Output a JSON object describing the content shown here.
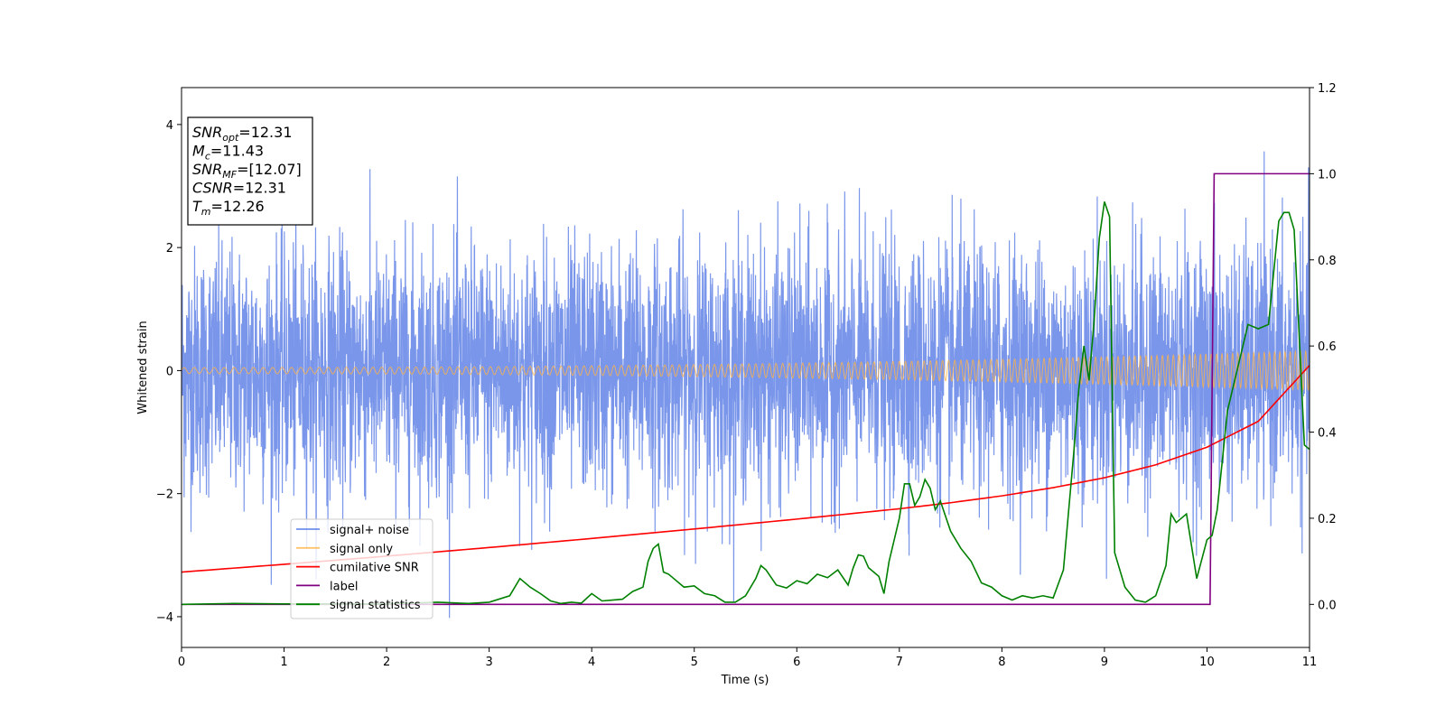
{
  "chart_data": {
    "type": "line",
    "xlabel": "Time (s)",
    "ylabel": "Whitened strain",
    "xlim": [
      0,
      11
    ],
    "ylim_left": [
      -4.5,
      4.6
    ],
    "ylim_right": [
      -0.1,
      1.2
    ],
    "x_ticks": [
      0,
      1,
      2,
      3,
      4,
      5,
      6,
      7,
      8,
      9,
      10,
      11
    ],
    "y_ticks_left": [
      -4,
      -2,
      0,
      2,
      4
    ],
    "y_ticks_right": [
      0.0,
      0.2,
      0.4,
      0.6,
      0.8,
      1.0,
      1.2
    ],
    "grid": false,
    "legend_position": "lower-left",
    "stats_box": [
      {
        "base": "SNR",
        "sub": "opt",
        "value": "=12.31"
      },
      {
        "base": "M",
        "sub": "c",
        "value": "=11.43"
      },
      {
        "base": "SNR",
        "sub": "MF",
        "value": "=[12.07]"
      },
      {
        "base": "CSNR",
        "sub": "",
        "value": "=12.31"
      },
      {
        "base": "T",
        "sub": "m",
        "value": "=12.26"
      }
    ],
    "series": [
      {
        "name": "signal+ noise",
        "axis": "left",
        "color": "#4169e1",
        "kind": "noise",
        "std": 1.0,
        "typical_max": 3.5,
        "typical_min": -3.5
      },
      {
        "name": "signal only",
        "axis": "left",
        "color": "#ffb347",
        "kind": "chirp",
        "amplitude_start": 0.05,
        "amplitude_end": 0.32,
        "freq_start_hz": 10,
        "freq_end_hz": 20
      },
      {
        "name": "cumilative SNR",
        "axis": "right",
        "color": "#ff0000",
        "x": [
          0,
          1,
          2,
          3,
          4,
          5,
          6,
          7,
          7.5,
          8,
          8.5,
          9,
          9.5,
          10,
          10.5,
          11
        ],
        "y": [
          0.075,
          0.093,
          0.112,
          0.132,
          0.153,
          0.175,
          0.198,
          0.222,
          0.236,
          0.252,
          0.271,
          0.294,
          0.324,
          0.365,
          0.425,
          0.555
        ]
      },
      {
        "name": "label",
        "axis": "right",
        "color": "#800080",
        "x": [
          0,
          10.03,
          10.07,
          11
        ],
        "y": [
          0,
          0,
          1,
          1
        ]
      },
      {
        "name": "signal statistics",
        "axis": "right",
        "color": "#008000",
        "x": [
          0,
          0.5,
          1,
          1.5,
          2,
          2.5,
          2.8,
          3.0,
          3.2,
          3.3,
          3.4,
          3.5,
          3.6,
          3.7,
          3.8,
          3.9,
          4.0,
          4.1,
          4.2,
          4.3,
          4.4,
          4.5,
          4.55,
          4.6,
          4.65,
          4.7,
          4.75,
          4.8,
          4.9,
          5.0,
          5.1,
          5.2,
          5.3,
          5.4,
          5.5,
          5.6,
          5.65,
          5.7,
          5.8,
          5.9,
          6.0,
          6.1,
          6.2,
          6.3,
          6.4,
          6.5,
          6.55,
          6.6,
          6.65,
          6.7,
          6.8,
          6.85,
          6.9,
          7.0,
          7.05,
          7.1,
          7.15,
          7.2,
          7.25,
          7.3,
          7.35,
          7.4,
          7.5,
          7.6,
          7.7,
          7.8,
          7.9,
          8.0,
          8.1,
          8.2,
          8.3,
          8.4,
          8.5,
          8.6,
          8.7,
          8.75,
          8.8,
          8.85,
          8.9,
          8.95,
          9.0,
          9.05,
          9.1,
          9.2,
          9.3,
          9.4,
          9.5,
          9.6,
          9.65,
          9.7,
          9.8,
          9.9,
          10.0,
          10.05,
          10.1,
          10.2,
          10.3,
          10.4,
          10.5,
          10.6,
          10.7,
          10.75,
          10.8,
          10.85,
          10.9,
          10.95,
          11.0
        ],
        "y": [
          0,
          0.002,
          0.001,
          0.001,
          0.001,
          0.005,
          0.002,
          0.005,
          0.02,
          0.06,
          0.04,
          0.025,
          0.008,
          0.002,
          0.005,
          0.003,
          0.025,
          0.008,
          0.01,
          0.012,
          0.03,
          0.04,
          0.1,
          0.13,
          0.14,
          0.075,
          0.07,
          0.06,
          0.04,
          0.043,
          0.025,
          0.02,
          0.005,
          0.005,
          0.02,
          0.06,
          0.09,
          0.08,
          0.045,
          0.038,
          0.055,
          0.048,
          0.07,
          0.062,
          0.08,
          0.045,
          0.085,
          0.115,
          0.112,
          0.085,
          0.065,
          0.025,
          0.1,
          0.2,
          0.28,
          0.28,
          0.23,
          0.25,
          0.29,
          0.27,
          0.22,
          0.24,
          0.17,
          0.13,
          0.1,
          0.05,
          0.04,
          0.02,
          0.01,
          0.02,
          0.015,
          0.02,
          0.015,
          0.08,
          0.35,
          0.5,
          0.6,
          0.52,
          0.66,
          0.85,
          0.935,
          0.9,
          0.12,
          0.04,
          0.01,
          0.005,
          0.02,
          0.09,
          0.21,
          0.19,
          0.21,
          0.06,
          0.15,
          0.16,
          0.22,
          0.45,
          0.55,
          0.65,
          0.64,
          0.65,
          0.89,
          0.91,
          0.91,
          0.87,
          0.62,
          0.37,
          0.36
        ]
      }
    ]
  }
}
